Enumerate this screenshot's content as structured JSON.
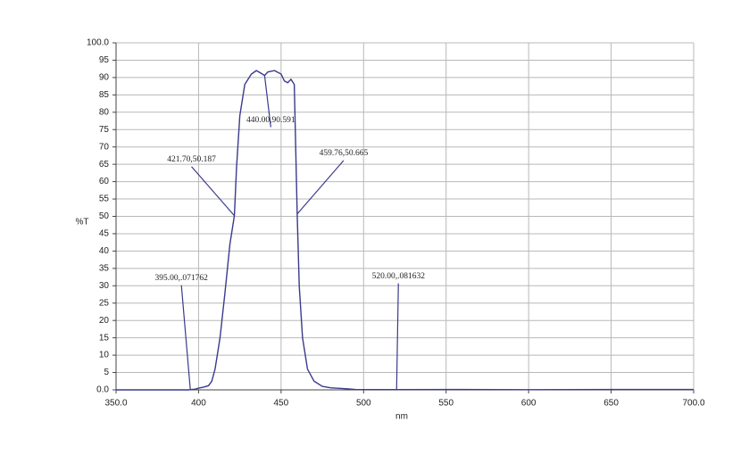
{
  "chart_data": {
    "type": "line",
    "xlabel": "nm",
    "ylabel": "%T",
    "xlim": [
      350,
      700
    ],
    "xticks": [
      {
        "value": 350,
        "label": "350.0"
      },
      400,
      450,
      500,
      550,
      600,
      650,
      {
        "value": 700,
        "label": "700.0"
      }
    ],
    "ylim": [
      0,
      100
    ],
    "yticks": [
      {
        "value": 0,
        "label": "0.0"
      },
      5,
      10,
      15,
      20,
      25,
      30,
      35,
      40,
      45,
      50,
      55,
      60,
      65,
      70,
      75,
      80,
      85,
      90,
      95,
      {
        "value": 100,
        "label": "100.0"
      }
    ],
    "grid": true,
    "series": [
      {
        "color": "#3a3a8c",
        "x": [
          350,
          380,
          394,
          395,
          398,
          400,
          403,
          406,
          408,
          410,
          413,
          416,
          419,
          421.7,
          423,
          425,
          428,
          432,
          435,
          438,
          440,
          442,
          446,
          450,
          452,
          454,
          456,
          458,
          459.76,
          461,
          463,
          466,
          470,
          475,
          480,
          490,
          495,
          520,
          560,
          600,
          650,
          700
        ],
        "values": [
          0,
          0,
          0,
          0.07,
          0.2,
          0.5,
          0.8,
          1.2,
          2.5,
          6,
          15,
          28,
          42,
          50.187,
          64,
          79,
          88,
          91,
          92,
          91.2,
          90.591,
          91.6,
          92,
          91,
          89,
          88.5,
          89.5,
          88,
          50.665,
          30,
          15,
          6,
          2.5,
          1,
          0.6,
          0.3,
          0.1,
          0.08,
          0.1,
          0.05,
          0.1,
          0.1
        ]
      }
    ],
    "annotations": [
      {
        "text": "395.00,.071762",
        "x": 395,
        "y": 0.071762
      },
      {
        "text": "421.70,50.187",
        "x": 421.7,
        "y": 50.187
      },
      {
        "text": "440.00,90.591",
        "x": 440,
        "y": 90.591
      },
      {
        "text": "459.76,50.665",
        "x": 459.76,
        "y": 50.665
      },
      {
        "text": "520.00,.081632",
        "x": 520,
        "y": 0.081632
      }
    ]
  }
}
